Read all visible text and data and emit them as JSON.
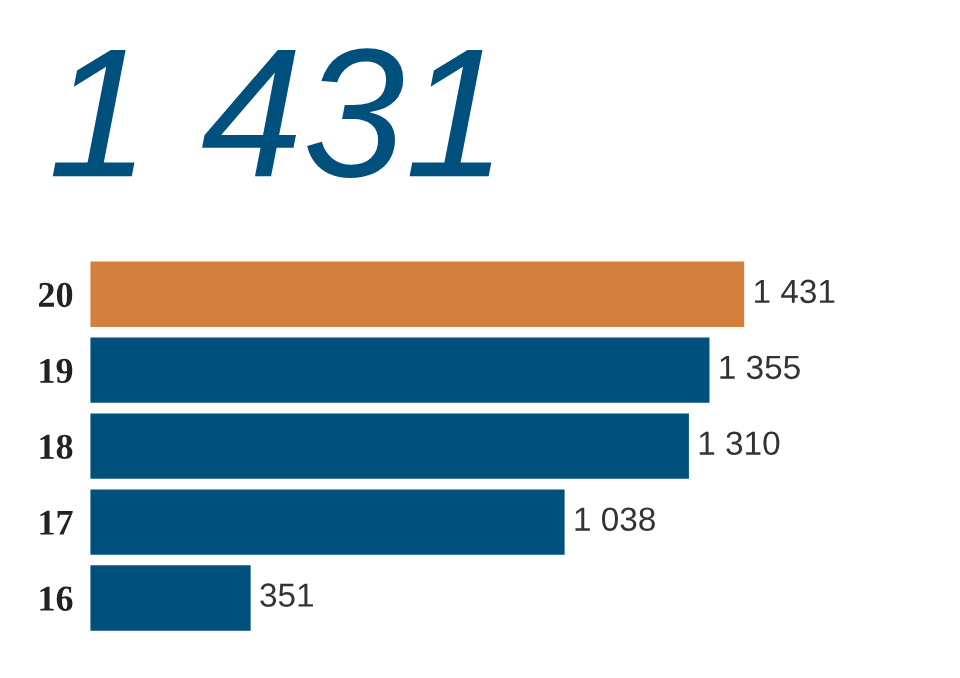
{
  "chart_data": {
    "type": "bar",
    "orientation": "horizontal",
    "title": "1 431",
    "categories": [
      "20",
      "19",
      "18",
      "17",
      "16"
    ],
    "values": [
      1431,
      1355,
      1310,
      1038,
      351
    ],
    "colors": [
      "#d47f3e",
      "#00507d",
      "#00507d",
      "#00507d",
      "#00507d"
    ],
    "value_labels": [
      "1 431",
      "1 355",
      "1 310",
      "1 038",
      "351"
    ],
    "grid": false,
    "legend": false
  }
}
